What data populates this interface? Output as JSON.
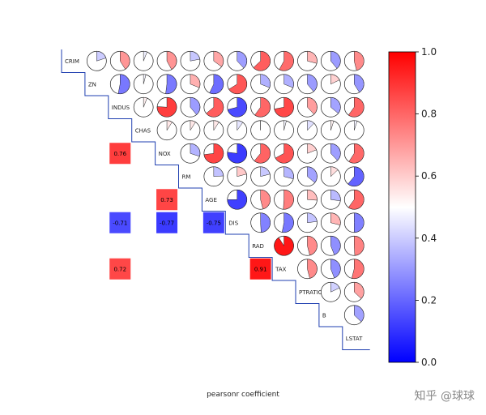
{
  "chart_data": {
    "type": "heatmap",
    "variables": [
      "CRIM",
      "ZN",
      "INDUS",
      "CHAS",
      "NOX",
      "RM",
      "AGE",
      "DIS",
      "RAD",
      "TAX",
      "PTRATIO",
      "B",
      "LSTAT"
    ],
    "xlabel": "pearsonr coefficient",
    "color_scale": {
      "min": 0.0,
      "max": 1.0,
      "low_color": "#0000ff",
      "mid_color": "#ffffff",
      "high_color": "#ff0000"
    },
    "colorbar_ticks": [
      "0.0",
      "0.2",
      "0.4",
      "0.6",
      "0.8",
      "1.0"
    ],
    "colorbar_tick_values": [
      0.0,
      0.2,
      0.4,
      0.6,
      0.8,
      1.0
    ],
    "upper_triangle_pies": [
      [
        "CRIM",
        "ZN",
        -0.2
      ],
      [
        "CRIM",
        "INDUS",
        0.41
      ],
      [
        "CRIM",
        "CHAS",
        -0.06
      ],
      [
        "CRIM",
        "NOX",
        0.42
      ],
      [
        "CRIM",
        "RM",
        -0.22
      ],
      [
        "CRIM",
        "AGE",
        0.35
      ],
      [
        "CRIM",
        "DIS",
        -0.38
      ],
      [
        "CRIM",
        "RAD",
        0.63
      ],
      [
        "CRIM",
        "TAX",
        0.58
      ],
      [
        "CRIM",
        "PTRATIO",
        0.29
      ],
      [
        "CRIM",
        "B",
        -0.39
      ],
      [
        "CRIM",
        "LSTAT",
        0.46
      ],
      [
        "ZN",
        "INDUS",
        -0.53
      ],
      [
        "ZN",
        "CHAS",
        -0.04
      ],
      [
        "ZN",
        "NOX",
        -0.52
      ],
      [
        "ZN",
        "RM",
        0.31
      ],
      [
        "ZN",
        "AGE",
        -0.57
      ],
      [
        "ZN",
        "DIS",
        0.66
      ],
      [
        "ZN",
        "RAD",
        -0.31
      ],
      [
        "ZN",
        "TAX",
        -0.31
      ],
      [
        "ZN",
        "PTRATIO",
        -0.39
      ],
      [
        "ZN",
        "B",
        0.18
      ],
      [
        "ZN",
        "LSTAT",
        -0.41
      ],
      [
        "INDUS",
        "CHAS",
        0.06
      ],
      [
        "INDUS",
        "NOX",
        0.76
      ],
      [
        "INDUS",
        "RM",
        -0.39
      ],
      [
        "INDUS",
        "AGE",
        0.64
      ],
      [
        "INDUS",
        "DIS",
        -0.71
      ],
      [
        "INDUS",
        "RAD",
        0.6
      ],
      [
        "INDUS",
        "TAX",
        0.72
      ],
      [
        "INDUS",
        "PTRATIO",
        0.38
      ],
      [
        "INDUS",
        "B",
        -0.36
      ],
      [
        "INDUS",
        "LSTAT",
        0.6
      ],
      [
        "CHAS",
        "NOX",
        0.09
      ],
      [
        "CHAS",
        "RM",
        0.09
      ],
      [
        "CHAS",
        "AGE",
        0.09
      ],
      [
        "CHAS",
        "DIS",
        -0.1
      ],
      [
        "CHAS",
        "RAD",
        -0.01
      ],
      [
        "CHAS",
        "TAX",
        -0.04
      ],
      [
        "CHAS",
        "PTRATIO",
        -0.12
      ],
      [
        "CHAS",
        "B",
        0.05
      ],
      [
        "CHAS",
        "LSTAT",
        -0.05
      ],
      [
        "NOX",
        "RM",
        -0.3
      ],
      [
        "NOX",
        "AGE",
        0.73
      ],
      [
        "NOX",
        "DIS",
        -0.77
      ],
      [
        "NOX",
        "RAD",
        0.61
      ],
      [
        "NOX",
        "TAX",
        0.67
      ],
      [
        "NOX",
        "PTRATIO",
        0.19
      ],
      [
        "NOX",
        "B",
        -0.38
      ],
      [
        "NOX",
        "LSTAT",
        0.59
      ],
      [
        "RM",
        "AGE",
        -0.24
      ],
      [
        "RM",
        "DIS",
        0.21
      ],
      [
        "RM",
        "RAD",
        -0.21
      ],
      [
        "RM",
        "TAX",
        -0.29
      ],
      [
        "RM",
        "PTRATIO",
        -0.36
      ],
      [
        "RM",
        "B",
        0.13
      ],
      [
        "RM",
        "LSTAT",
        -0.61
      ],
      [
        "AGE",
        "DIS",
        -0.75
      ],
      [
        "AGE",
        "RAD",
        0.46
      ],
      [
        "AGE",
        "TAX",
        0.51
      ],
      [
        "AGE",
        "PTRATIO",
        0.26
      ],
      [
        "AGE",
        "B",
        -0.27
      ],
      [
        "AGE",
        "LSTAT",
        0.6
      ],
      [
        "DIS",
        "RAD",
        -0.49
      ],
      [
        "DIS",
        "TAX",
        -0.53
      ],
      [
        "DIS",
        "PTRATIO",
        -0.23
      ],
      [
        "DIS",
        "B",
        0.29
      ],
      [
        "DIS",
        "LSTAT",
        -0.5
      ],
      [
        "RAD",
        "TAX",
        0.91
      ],
      [
        "RAD",
        "PTRATIO",
        0.46
      ],
      [
        "RAD",
        "B",
        -0.44
      ],
      [
        "RAD",
        "LSTAT",
        0.49
      ],
      [
        "TAX",
        "PTRATIO",
        0.46
      ],
      [
        "TAX",
        "B",
        -0.44
      ],
      [
        "TAX",
        "LSTAT",
        0.54
      ],
      [
        "PTRATIO",
        "B",
        -0.18
      ],
      [
        "PTRATIO",
        "LSTAT",
        0.37
      ],
      [
        "B",
        "LSTAT",
        -0.37
      ]
    ],
    "lower_triangle_highlights": [
      {
        "row": "NOX",
        "col": "INDUS",
        "value": 0.76,
        "label": "0.76"
      },
      {
        "row": "AGE",
        "col": "NOX",
        "value": 0.73,
        "label": "0.73"
      },
      {
        "row": "DIS",
        "col": "INDUS",
        "value": -0.71,
        "label": "-0.71"
      },
      {
        "row": "DIS",
        "col": "NOX",
        "value": -0.77,
        "label": "-0.77"
      },
      {
        "row": "DIS",
        "col": "AGE",
        "value": -0.75,
        "label": "-0.75"
      },
      {
        "row": "TAX",
        "col": "INDUS",
        "value": 0.72,
        "label": "0.72"
      },
      {
        "row": "TAX",
        "col": "RAD",
        "value": 0.91,
        "label": "0.91"
      }
    ]
  },
  "watermark": "知乎 @球球"
}
